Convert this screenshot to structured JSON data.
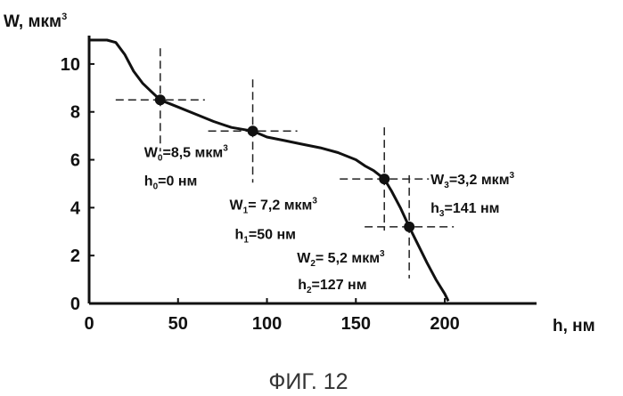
{
  "chart_data": {
    "type": "line",
    "title": "",
    "caption": "ФИГ. 12",
    "ylabel_main": "W, мкм",
    "ylabel_sup": "3",
    "xlabel": "h, нм",
    "xlim": [
      0,
      210
    ],
    "ylim": [
      0,
      11
    ],
    "xticks": [
      "0",
      "50",
      "100",
      "150",
      "200"
    ],
    "yticks": [
      "0",
      "2",
      "4",
      "6",
      "8",
      "10"
    ],
    "grid": false,
    "series": [
      {
        "x": [
          0,
          5,
          10,
          15,
          20,
          25,
          30,
          35,
          40,
          50,
          60,
          70,
          80,
          92,
          100,
          110,
          120,
          130,
          140,
          150,
          155,
          160,
          166,
          170,
          175,
          180,
          185,
          190,
          195,
          200,
          202
        ],
        "y": [
          11.0,
          11.0,
          11.0,
          10.9,
          10.4,
          9.7,
          9.2,
          8.85,
          8.5,
          8.2,
          7.9,
          7.6,
          7.35,
          7.2,
          6.95,
          6.8,
          6.65,
          6.5,
          6.3,
          6.0,
          5.75,
          5.55,
          5.2,
          4.7,
          4.0,
          3.2,
          2.45,
          1.7,
          1.0,
          0.4,
          0.1
        ]
      }
    ],
    "points": [
      {
        "x": 40,
        "y": 8.5,
        "label_main": "W",
        "label_sub": "0",
        "label_value": "=8,5 мкм",
        "label_sup": "3",
        "h_main": "h",
        "h_sub": "0",
        "h_value": "=0 нм"
      },
      {
        "x": 92,
        "y": 7.2,
        "label_main": "W",
        "label_sub": "1",
        "label_value": "= 7,2  мкм",
        "label_sup": "3",
        "h_main": "h",
        "h_sub": "1",
        "h_value": "=50 нм"
      },
      {
        "x": 166,
        "y": 5.2,
        "label_main": "W",
        "label_sub": "2",
        "label_value": "= 5,2 мкм",
        "label_sup": "3",
        "h_main": "h",
        "h_sub": "2",
        "h_value": "=127 нм"
      },
      {
        "x": 180,
        "y": 3.2,
        "label_main": "W",
        "label_sub": "3",
        "label_value": "=3,2 мкм",
        "label_sup": "3",
        "h_main": "h",
        "h_sub": "3",
        "h_value": "=141 нм"
      }
    ]
  }
}
